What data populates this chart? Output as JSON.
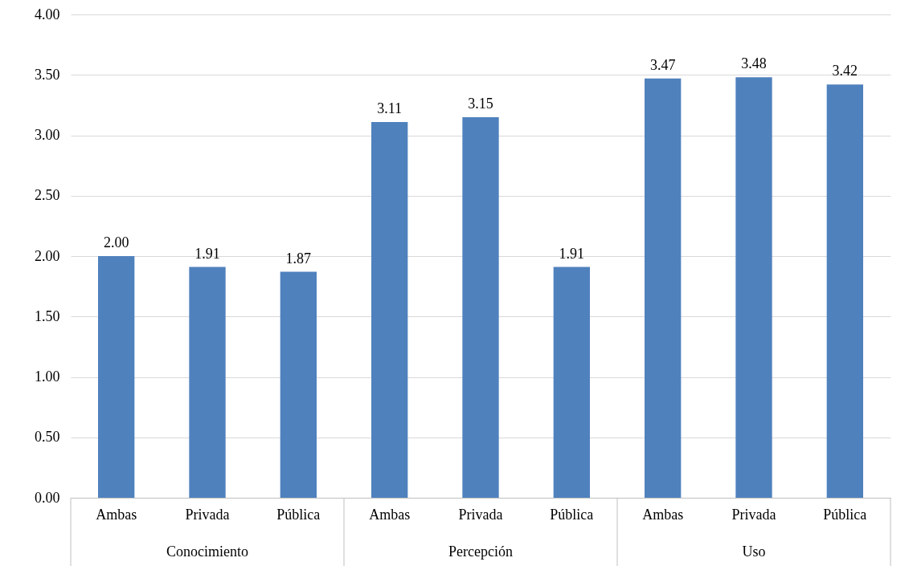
{
  "chart_data": {
    "type": "bar",
    "categories": [
      "Ambas",
      "Privada",
      "Pública",
      "Ambas",
      "Privada",
      "Pública",
      "Ambas",
      "Privada",
      "Pública"
    ],
    "values": [
      2.0,
      1.91,
      1.87,
      3.11,
      3.15,
      1.91,
      3.47,
      3.48,
      3.42
    ],
    "color": "#4f81bd",
    "ylim": [
      0,
      4
    ],
    "yticks": [
      {
        "value": 0,
        "label": "0.00"
      },
      {
        "value": 0.5,
        "label": "0.50"
      },
      {
        "value": 1,
        "label": "1.00"
      },
      {
        "value": 1.5,
        "label": "1.50"
      },
      {
        "value": 2,
        "label": "2.00"
      },
      {
        "value": 2.5,
        "label": "2.50"
      },
      {
        "value": 3,
        "label": "3.00"
      },
      {
        "value": 3.5,
        "label": "3.50"
      },
      {
        "value": 4,
        "label": "4.00"
      }
    ],
    "value_labels": [
      "2.00",
      "1.91",
      "1.87",
      "3.11",
      "3.15",
      "1.91",
      "3.47",
      "3.48",
      "3.42"
    ],
    "annotations": [
      "Conocimiento",
      "Percepción",
      "Uso"
    ],
    "grid": "y"
  }
}
